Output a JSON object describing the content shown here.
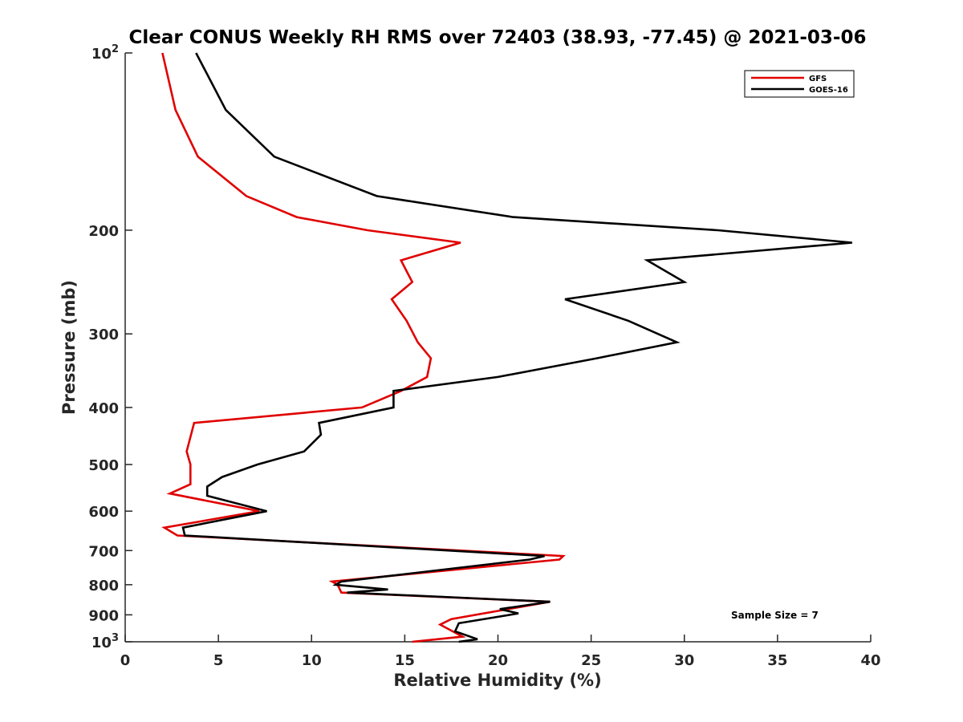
{
  "chart_data": {
    "type": "line",
    "title": "Clear CONUS Weekly RH RMS over 72403 (38.93, -77.45) @ 2021-03-06",
    "xlabel": "Relative Humidity (%)",
    "ylabel": "Pressure (mb)",
    "xlim": [
      0,
      40
    ],
    "ylim": [
      100,
      1000
    ],
    "y_scale": "log",
    "y_reversed": true,
    "grid": false,
    "legend_position": "top-right",
    "annotation": "Sample Size = 7",
    "x_ticks": [
      {
        "value": 0,
        "label": "0"
      },
      {
        "value": 5,
        "label": "5"
      },
      {
        "value": 10,
        "label": "10"
      },
      {
        "value": 15,
        "label": "15"
      },
      {
        "value": 20,
        "label": "20"
      },
      {
        "value": 25,
        "label": "25"
      },
      {
        "value": 30,
        "label": "30"
      },
      {
        "value": 35,
        "label": "35"
      },
      {
        "value": 40,
        "label": "40"
      }
    ],
    "y_ticks": [
      {
        "value": 100,
        "base": "10",
        "exp": "2"
      },
      {
        "value": 200,
        "base": "200",
        "exp": ""
      },
      {
        "value": 300,
        "base": "300",
        "exp": ""
      },
      {
        "value": 400,
        "base": "400",
        "exp": ""
      },
      {
        "value": 500,
        "base": "500",
        "exp": ""
      },
      {
        "value": 600,
        "base": "600",
        "exp": ""
      },
      {
        "value": 700,
        "base": "700",
        "exp": ""
      },
      {
        "value": 800,
        "base": "800",
        "exp": ""
      },
      {
        "value": 900,
        "base": "900",
        "exp": ""
      },
      {
        "value": 1000,
        "base": "10",
        "exp": "3"
      }
    ],
    "series": [
      {
        "name": "GFS",
        "color": "#e00000",
        "points": [
          [
            2.0,
            100
          ],
          [
            2.7,
            125
          ],
          [
            3.9,
            150
          ],
          [
            6.5,
            175
          ],
          [
            9.2,
            190
          ],
          [
            13.0,
            200
          ],
          [
            18.0,
            210
          ],
          [
            14.8,
            225
          ],
          [
            15.4,
            245
          ],
          [
            14.3,
            262
          ],
          [
            15.1,
            285
          ],
          [
            15.7,
            310
          ],
          [
            16.4,
            330
          ],
          [
            16.2,
            355
          ],
          [
            14.8,
            375
          ],
          [
            12.7,
            400
          ],
          [
            3.7,
            425
          ],
          [
            3.3,
            475
          ],
          [
            3.5,
            500
          ],
          [
            3.5,
            540
          ],
          [
            2.4,
            560
          ],
          [
            7.2,
            600
          ],
          [
            2.1,
            640
          ],
          [
            2.8,
            660
          ],
          [
            23.5,
            715
          ],
          [
            23.3,
            725
          ],
          [
            11.1,
            790
          ],
          [
            11.4,
            800
          ],
          [
            11.6,
            825
          ],
          [
            22.8,
            855
          ],
          [
            17.5,
            915
          ],
          [
            16.9,
            935
          ],
          [
            18.1,
            980
          ],
          [
            15.4,
            1000
          ]
        ]
      },
      {
        "name": "GOES-16",
        "color": "#000000",
        "points": [
          [
            3.8,
            100
          ],
          [
            5.4,
            125
          ],
          [
            8.0,
            150
          ],
          [
            13.5,
            175
          ],
          [
            20.8,
            190
          ],
          [
            31.8,
            200
          ],
          [
            39.0,
            210
          ],
          [
            28.0,
            225
          ],
          [
            30.0,
            245
          ],
          [
            23.6,
            262
          ],
          [
            27.0,
            285
          ],
          [
            29.6,
            310
          ],
          [
            25.3,
            330
          ],
          [
            20.0,
            355
          ],
          [
            14.4,
            375
          ],
          [
            14.4,
            400
          ],
          [
            10.4,
            425
          ],
          [
            10.5,
            445
          ],
          [
            9.6,
            475
          ],
          [
            7.1,
            500
          ],
          [
            5.2,
            525
          ],
          [
            4.4,
            545
          ],
          [
            4.4,
            565
          ],
          [
            7.6,
            600
          ],
          [
            3.1,
            640
          ],
          [
            3.2,
            660
          ],
          [
            22.5,
            715
          ],
          [
            21.7,
            725
          ],
          [
            11.6,
            790
          ],
          [
            11.3,
            800
          ],
          [
            14.1,
            815
          ],
          [
            11.9,
            825
          ],
          [
            22.8,
            855
          ],
          [
            20.1,
            880
          ],
          [
            21.1,
            895
          ],
          [
            17.9,
            930
          ],
          [
            17.7,
            960
          ],
          [
            18.9,
            990
          ],
          [
            17.9,
            1000
          ]
        ]
      }
    ]
  }
}
